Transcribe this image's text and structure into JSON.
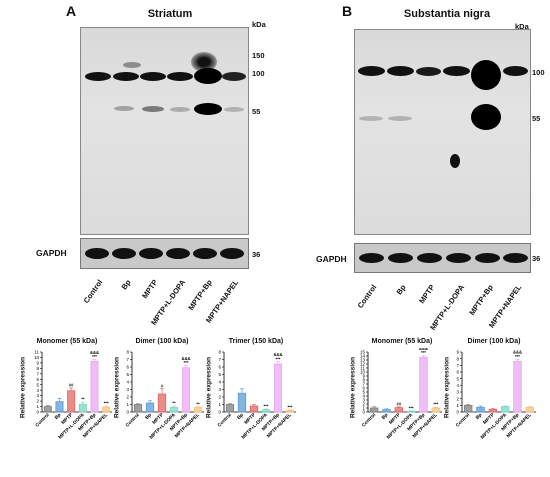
{
  "panel_a": {
    "letter": "A",
    "title": "Striatum",
    "kda_label": "kDa",
    "markers": [
      "150",
      "100",
      "55"
    ],
    "gapdh_label": "GAPDH",
    "gapdh_mw": "36",
    "lanes": [
      "Control",
      "Bp",
      "MPTP",
      "MPTP+L-DOPA",
      "MPTP+Bp",
      "MPTP+NAPEL"
    ]
  },
  "panel_b": {
    "letter": "B",
    "title": "Substantia nigra",
    "kda_label": "kDa",
    "markers": [
      "100",
      "55"
    ],
    "gapdh_label": "GAPDH",
    "gapdh_mw": "36",
    "lanes": [
      "Control",
      "Bp",
      "MPTP",
      "MPTP+L-DOPA",
      "MPTP+Bp",
      "MPTP+NAPEL"
    ]
  },
  "chart_data": [
    {
      "type": "bar",
      "title": "Monomer (55 kDa)",
      "ylabel": "Relative expression",
      "categories": [
        "Control",
        "Bp",
        "MPTP",
        "MPTP+L-DOPA",
        "MPTP+Bp",
        "MPTP+NAPEL"
      ],
      "values": [
        1.0,
        1.9,
        3.9,
        1.4,
        9.3,
        0.9
      ],
      "errors": [
        0.2,
        0.6,
        0.5,
        0.4,
        0.3,
        0.2
      ],
      "ylim": [
        0,
        11
      ],
      "yticks": [
        0,
        1,
        2,
        3,
        4,
        5,
        6,
        7,
        8,
        9,
        10,
        11
      ],
      "colors": [
        "#7f7f7f",
        "#5b9bd5",
        "#e06666",
        "#76d7c4",
        "#e8a8f0",
        "#f6c27a"
      ],
      "annotations": [
        "",
        "",
        "##",
        "**",
        "&&&\n***",
        "***"
      ]
    },
    {
      "type": "bar",
      "title": "Dimer (100 kDa)",
      "ylabel": "Relative expression",
      "categories": [
        "Control",
        "Bp",
        "MPTP",
        "MPTP+L-DOPA",
        "MPTP+Bp",
        "MPTP+NAPEL"
      ],
      "values": [
        1.0,
        1.2,
        2.4,
        0.6,
        5.9,
        0.6
      ],
      "errors": [
        0.1,
        0.3,
        0.7,
        0.2,
        0.3,
        0.1
      ],
      "ylim": [
        0,
        8
      ],
      "yticks": [
        0,
        1,
        2,
        3,
        4,
        5,
        6,
        7,
        8
      ],
      "colors": [
        "#7f7f7f",
        "#5b9bd5",
        "#e06666",
        "#76d7c4",
        "#e8a8f0",
        "#f6c27a"
      ],
      "annotations": [
        "",
        "",
        "#",
        "**",
        "&&&\n***",
        "**"
      ]
    },
    {
      "type": "bar",
      "title": "Trimer (150 kDa)",
      "ylabel": "Relative expression",
      "categories": [
        "Control",
        "Bp",
        "MPTP",
        "MPTP+L-DOPA",
        "MPTP+Bp",
        "MPTP+NAPEL"
      ],
      "values": [
        1.0,
        2.5,
        0.8,
        0.3,
        6.4,
        0.2
      ],
      "errors": [
        0.1,
        0.6,
        0.2,
        0.1,
        0.3,
        0.1
      ],
      "ylim": [
        0,
        8
      ],
      "yticks": [
        0,
        1,
        2,
        3,
        4,
        5,
        6,
        7,
        8
      ],
      "colors": [
        "#7f7f7f",
        "#5b9bd5",
        "#e06666",
        "#76d7c4",
        "#e8a8f0",
        "#f6c27a"
      ],
      "annotations": [
        "",
        "",
        "",
        "***",
        "&&&\n***",
        "***"
      ]
    },
    {
      "type": "bar",
      "title": "Monomer (55 kDa)",
      "ylabel": "Relative expression",
      "categories": [
        "Control",
        "Bp",
        "MPTP",
        "MPTP+L-DOPA",
        "MPTP+Bp",
        "MPTP+NAPEL"
      ],
      "values": [
        1.0,
        0.6,
        1.1,
        0.2,
        13.7,
        1.0
      ],
      "errors": [
        0.3,
        0.2,
        0.2,
        0.1,
        0.4,
        0.2
      ],
      "ylim": [
        0,
        15
      ],
      "yticks": [
        0,
        1,
        2,
        3,
        4,
        5,
        6,
        7,
        8,
        9,
        10,
        11,
        12,
        13,
        14,
        15
      ],
      "colors": [
        "#7f7f7f",
        "#5b9bd5",
        "#e06666",
        "#76d7c4",
        "#e8a8f0",
        "#f6c27a"
      ],
      "annotations": [
        "",
        "",
        "##",
        "***",
        "&&&\n***",
        "***"
      ]
    },
    {
      "type": "bar",
      "title": "Dimer (100 kDa)",
      "ylabel": "Relative expression",
      "categories": [
        "Control",
        "Bp",
        "MPTP",
        "MPTP+L-DOPA",
        "MPTP+Bp",
        "MPTP+NAPEL"
      ],
      "values": [
        1.0,
        0.7,
        0.4,
        0.8,
        7.6,
        0.7
      ],
      "errors": [
        0.1,
        0.2,
        0.1,
        0.1,
        0.3,
        0.1
      ],
      "ylim": [
        0,
        9
      ],
      "yticks": [
        0,
        1,
        2,
        3,
        4,
        5,
        6,
        7,
        8,
        9
      ],
      "colors": [
        "#7f7f7f",
        "#5b9bd5",
        "#e06666",
        "#76d7c4",
        "#e8a8f0",
        "#f6c27a"
      ],
      "annotations": [
        "",
        "",
        "",
        "",
        "&&&\n***",
        ""
      ]
    }
  ]
}
